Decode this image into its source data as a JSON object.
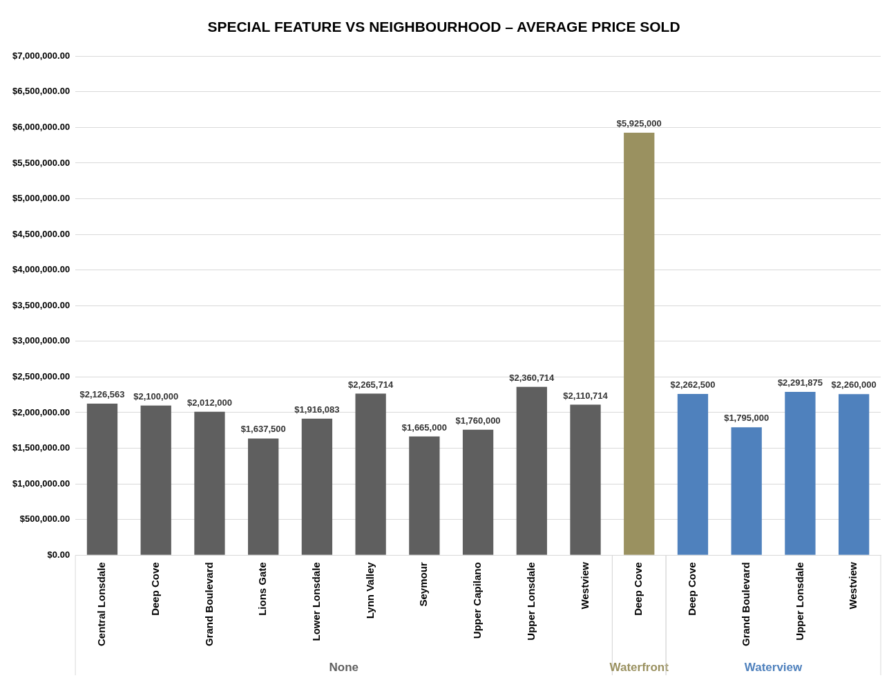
{
  "chart_data": {
    "type": "bar",
    "title": "SPECIAL FEATURE VS NEIGHBOURHOOD – AVERAGE PRICE SOLD",
    "categories": [
      "Central Lonsdale",
      "Deep Cove",
      "Grand Boulevard",
      "Lions Gate",
      "Lower Lonsdale",
      "Lynn Valley",
      "Seymour",
      "Upper Capilano",
      "Upper Lonsdale",
      "Westview",
      "Deep Cove",
      "Deep Cove",
      "Grand Boulevard",
      "Upper Lonsdale",
      "Westview"
    ],
    "series": [
      {
        "name": "None",
        "color": "#5f5f5f",
        "values": [
          2126563,
          2100000,
          2012000,
          1637500,
          1916083,
          2265714,
          1665000,
          1760000,
          2360714,
          2110714,
          null,
          null,
          null,
          null,
          null
        ],
        "value_labels": [
          "$2,126,563",
          "$2,100,000",
          "$2,012,000",
          "$1,637,500",
          "$1,916,083",
          "$2,265,714",
          "$1,665,000",
          "$1,760,000",
          "$2,360,714",
          "$2,110,714",
          null,
          null,
          null,
          null,
          null
        ]
      },
      {
        "name": "Waterfront",
        "color": "#9a9160",
        "values": [
          null,
          null,
          null,
          null,
          null,
          null,
          null,
          null,
          null,
          null,
          5925000,
          null,
          null,
          null,
          null
        ],
        "value_labels": [
          null,
          null,
          null,
          null,
          null,
          null,
          null,
          null,
          null,
          null,
          "$5,925,000",
          null,
          null,
          null,
          null
        ]
      },
      {
        "name": "Waterview",
        "color": "#4f81bd",
        "values": [
          null,
          null,
          null,
          null,
          null,
          null,
          null,
          null,
          null,
          null,
          null,
          2262500,
          1795000,
          2291875,
          2260000
        ],
        "value_labels": [
          null,
          null,
          null,
          null,
          null,
          null,
          null,
          null,
          null,
          null,
          null,
          "$2,262,500",
          "$1,795,000",
          "$2,291,875",
          "$2,260,000"
        ]
      }
    ],
    "ylim": [
      0,
      7000000
    ],
    "yticks": [
      {
        "value": 0,
        "label": "$0.00"
      },
      {
        "value": 500000,
        "label": "$500,000.00"
      },
      {
        "value": 1000000,
        "label": "$1,000,000.00"
      },
      {
        "value": 1500000,
        "label": "$1,500,000.00"
      },
      {
        "value": 2000000,
        "label": "$2,000,000.00"
      },
      {
        "value": 2500000,
        "label": "$2,500,000.00"
      },
      {
        "value": 3000000,
        "label": "$3,000,000.00"
      },
      {
        "value": 3500000,
        "label": "$3,500,000.00"
      },
      {
        "value": 4000000,
        "label": "$4,000,000.00"
      },
      {
        "value": 4500000,
        "label": "$4,500,000.00"
      },
      {
        "value": 5000000,
        "label": "$5,000,000.00"
      },
      {
        "value": 5500000,
        "label": "$5,500,000.00"
      },
      {
        "value": 6000000,
        "label": "$6,000,000.00"
      },
      {
        "value": 6500000,
        "label": "$6,500,000.00"
      },
      {
        "value": 7000000,
        "label": "$7,000,000.00"
      }
    ],
    "grid": "y",
    "legend": false
  }
}
